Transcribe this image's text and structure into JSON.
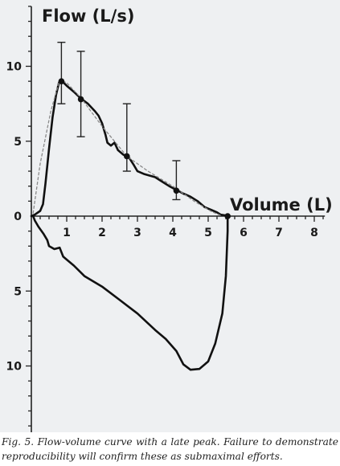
{
  "chart_data": {
    "type": "line",
    "x_axis_label": "Volume (L)",
    "y_axis_label": "Flow (L/s)",
    "x_ticks": [
      1,
      2,
      3,
      4,
      5,
      6,
      7,
      8
    ],
    "y_ticks_expiratory": [
      0,
      5,
      10
    ],
    "y_ticks_inspiratory": [
      5,
      10
    ],
    "xlim": [
      0,
      8.3
    ],
    "ylim": [
      -14.5,
      14
    ],
    "series": [
      {
        "role": "measured-loop",
        "style": "solid",
        "color": "#111111",
        "points": [
          [
            0,
            0
          ],
          [
            0.1,
            0.1
          ],
          [
            0.25,
            0.35
          ],
          [
            0.33,
            0.8
          ],
          [
            0.4,
            2.2
          ],
          [
            0.5,
            4.5
          ],
          [
            0.6,
            6.6
          ],
          [
            0.7,
            8.1
          ],
          [
            0.78,
            8.9
          ],
          [
            0.85,
            9.05
          ],
          [
            1.0,
            8.7
          ],
          [
            1.2,
            8.3
          ],
          [
            1.4,
            7.85
          ],
          [
            1.6,
            7.5
          ],
          [
            1.8,
            7.0
          ],
          [
            1.9,
            6.7
          ],
          [
            2.0,
            6.2
          ],
          [
            2.1,
            5.4
          ],
          [
            2.15,
            4.9
          ],
          [
            2.25,
            4.7
          ],
          [
            2.35,
            4.9
          ],
          [
            2.45,
            4.4
          ],
          [
            2.6,
            4.1
          ],
          [
            2.75,
            3.95
          ],
          [
            2.9,
            3.4
          ],
          [
            3.0,
            3.0
          ],
          [
            3.2,
            2.8
          ],
          [
            3.5,
            2.6
          ],
          [
            3.7,
            2.3
          ],
          [
            3.9,
            2.0
          ],
          [
            4.1,
            1.75
          ],
          [
            4.3,
            1.5
          ],
          [
            4.5,
            1.3
          ],
          [
            4.7,
            1.0
          ],
          [
            4.9,
            0.6
          ],
          [
            5.1,
            0.4
          ],
          [
            5.25,
            0.25
          ],
          [
            5.35,
            0.1
          ],
          [
            5.5,
            0.05
          ],
          [
            5.55,
            0.0
          ],
          [
            5.55,
            -1.0
          ],
          [
            5.5,
            -4.0
          ],
          [
            5.4,
            -6.5
          ],
          [
            5.2,
            -8.5
          ],
          [
            5.0,
            -9.7
          ],
          [
            4.75,
            -10.2
          ],
          [
            4.5,
            -10.25
          ],
          [
            4.3,
            -9.9
          ],
          [
            4.1,
            -9.0
          ],
          [
            3.8,
            -8.2
          ],
          [
            3.5,
            -7.6
          ],
          [
            3.0,
            -6.5
          ],
          [
            2.5,
            -5.6
          ],
          [
            2.0,
            -4.7
          ],
          [
            1.5,
            -4.0
          ],
          [
            1.2,
            -3.3
          ],
          [
            1.0,
            -2.9
          ],
          [
            0.9,
            -2.7
          ],
          [
            0.85,
            -2.4
          ],
          [
            0.8,
            -2.1
          ],
          [
            0.65,
            -2.2
          ],
          [
            0.5,
            -2.0
          ],
          [
            0.45,
            -1.6
          ],
          [
            0.35,
            -1.2
          ],
          [
            0.2,
            -0.7
          ],
          [
            0.1,
            -0.3
          ],
          [
            0.05,
            0.0
          ]
        ]
      },
      {
        "role": "reference",
        "style": "dashed",
        "color": "#8a8a8a",
        "points": [
          [
            0.05,
            0.2
          ],
          [
            0.25,
            3.5
          ],
          [
            0.55,
            7.0
          ],
          [
            0.8,
            9.1
          ],
          [
            1.0,
            8.9
          ],
          [
            1.4,
            7.9
          ],
          [
            2.0,
            6.0
          ],
          [
            2.7,
            4.0
          ],
          [
            3.3,
            3.0
          ],
          [
            4.0,
            2.0
          ],
          [
            4.6,
            1.0
          ],
          [
            5.1,
            0.3
          ],
          [
            5.35,
            0.05
          ]
        ]
      }
    ],
    "error_points": [
      {
        "x": 0.85,
        "y": 9.0,
        "low": 7.5,
        "high": 11.6
      },
      {
        "x": 1.4,
        "y": 7.8,
        "low": 5.3,
        "high": 11.0
      },
      {
        "x": 2.7,
        "y": 4.0,
        "low": 3.0,
        "high": 7.5
      },
      {
        "x": 4.1,
        "y": 1.7,
        "low": 1.1,
        "high": 3.7
      }
    ],
    "endpoint": {
      "x": 5.55,
      "y": 0.0
    }
  },
  "caption": "Fig. 5. Flow-volume curve with a late peak. Failure to demonstrate reproducibility will confirm these as submaximal efforts."
}
